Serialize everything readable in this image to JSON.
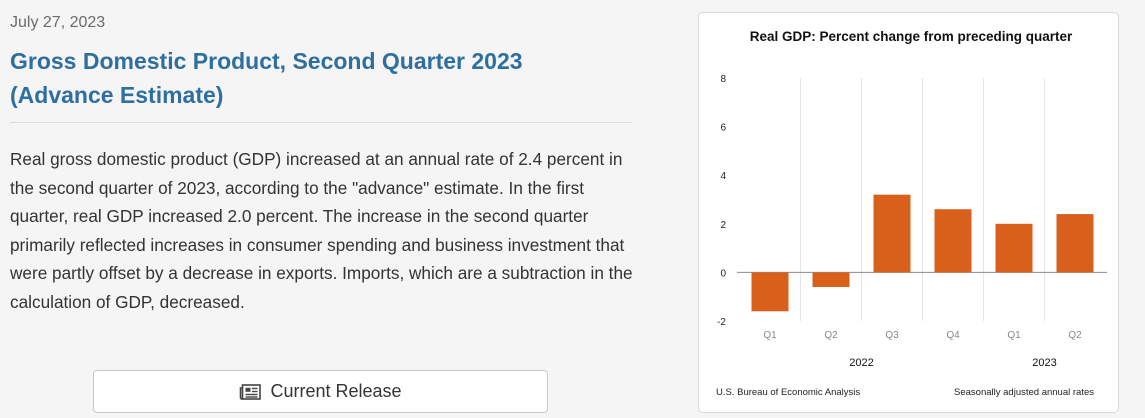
{
  "release": {
    "date": "July 27, 2023",
    "title": "Gross Domestic Product, Second Quarter 2023 (Advance Estimate)",
    "summary": "Real gross domestic product (GDP) increased at an annual rate of 2.4 percent in the second quarter of 2023, according to the \"advance\" estimate. In the first quarter, real GDP increased 2.0 percent. The increase in the second quarter primarily reflected increases in consumer spending and business investment that were partly offset by a decrease in exports. Imports, which are a subtraction in the calculation of GDP, decreased.",
    "button_label": "Current Release",
    "button_icon": "newspaper-icon"
  },
  "chart_data": {
    "type": "bar",
    "title": "Real GDP:  Percent change from preceding quarter",
    "categories": [
      "Q1",
      "Q2",
      "Q3",
      "Q4",
      "Q1",
      "Q2"
    ],
    "year_groups": [
      {
        "label": "2022",
        "span": [
          0,
          3
        ]
      },
      {
        "label": "2023",
        "span": [
          4,
          5
        ]
      }
    ],
    "values": [
      -1.6,
      -0.6,
      3.2,
      2.6,
      2.0,
      2.4
    ],
    "ylim": [
      -2,
      8
    ],
    "yticks": [
      "8",
      "6",
      "4",
      "2",
      "0",
      "-2"
    ],
    "bar_color": "#d9601a",
    "source": "U.S. Bureau of Economic Analysis",
    "note": "Seasonally adjusted annual rates"
  }
}
